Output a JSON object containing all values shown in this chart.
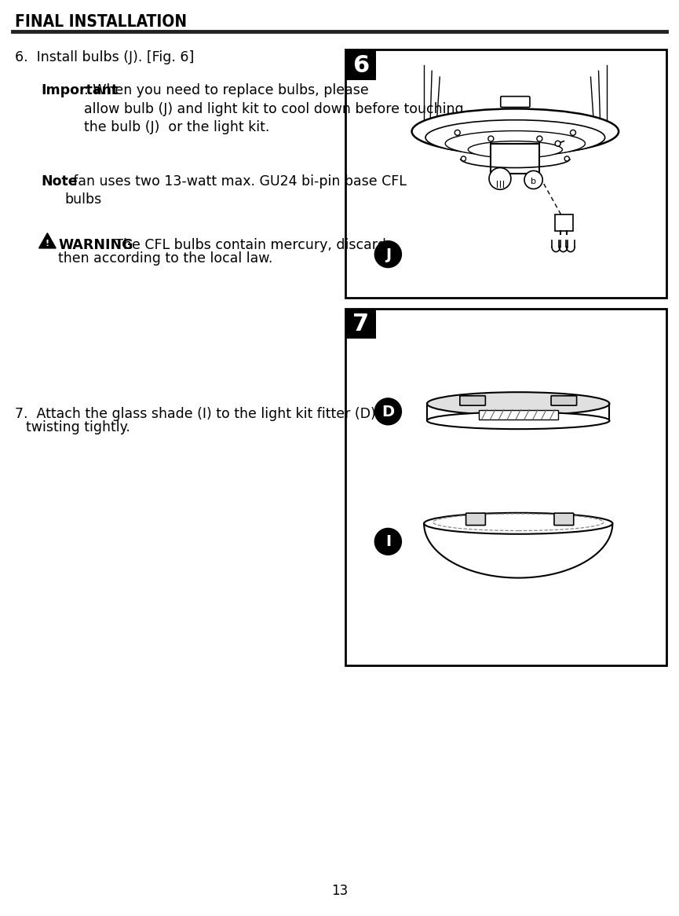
{
  "title": "FINAL INSTALLATION",
  "step6_line": "6.  Install bulbs (J). [Fig. 6]",
  "imp_label": "Important",
  "imp_body": ": When you need to replace bulbs, please\nallow bulb (J) and light kit to cool down before touching\nthe bulb (J)  or the light kit.",
  "note_label": "Note",
  "note_body": ": fan uses two 13-watt max. GU24 bi-pin base CFL\nbulbs",
  "warn_label": "WARNING",
  "warn_body": ": The CFL bulbs contain mercury, discard\nthen according to the local law.",
  "step7_line1": "7.  Attach the glass shade (I) to the light kit fitter (D) by",
  "step7_line2": "     twisting tightly.",
  "fig6_num": "6",
  "fig7_num": "7",
  "lbl_J": "J",
  "lbl_D": "D",
  "lbl_I": "I",
  "page_num": "13",
  "bg": "#ffffff",
  "fg": "#000000",
  "title_fs": 15,
  "body_fs": 12.5,
  "fig_border": "#000000"
}
